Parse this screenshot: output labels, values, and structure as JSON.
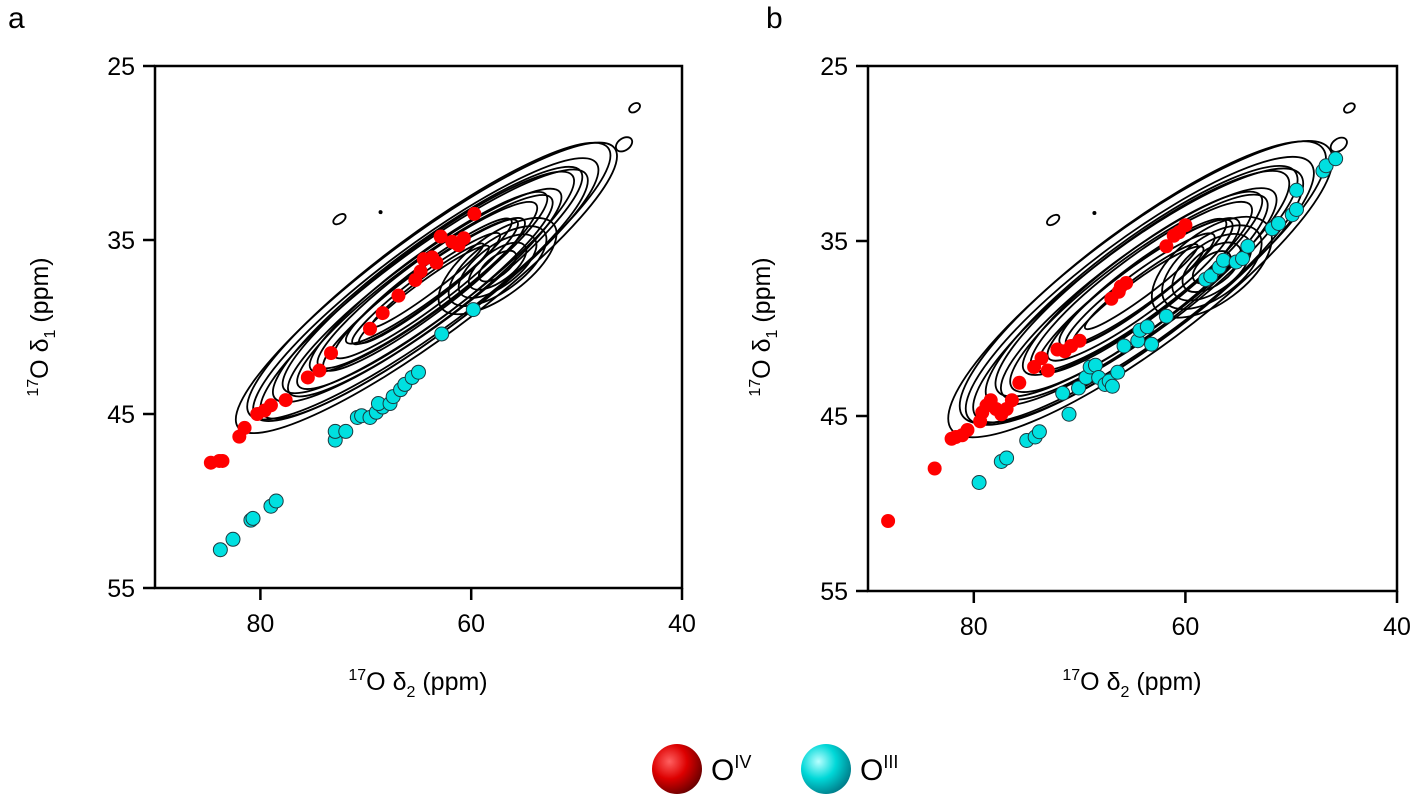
{
  "figure": {
    "legend": [
      {
        "base": "O",
        "sup": "IV",
        "color": "#ff0000"
      },
      {
        "base": "O",
        "sup": "III",
        "color": "#00e0e0"
      }
    ],
    "contour_color": "#000000"
  },
  "chart_data": [
    {
      "type": "scatter",
      "panel_label": "a",
      "x_label": {
        "sup": "17",
        "text": "O δ",
        "sub": "2",
        "unit": " (ppm)"
      },
      "y_label": {
        "sup": "17",
        "text": "O δ",
        "sub": "1",
        "unit": " (ppm)"
      },
      "xlim": [
        90,
        40
      ],
      "ylim": [
        25,
        55
      ],
      "x_ticks": [
        80,
        60,
        40
      ],
      "y_ticks": [
        25,
        35,
        45,
        55
      ],
      "x_tick_labels": [
        "80",
        "60",
        "40"
      ],
      "y_tick_labels": [
        "25",
        "35",
        "45",
        "55"
      ],
      "grid": false,
      "series": [
        {
          "name": "Oᴵⱽ",
          "color": "#ff0000",
          "points": [
            [
              84.7,
              47.8
            ],
            [
              83.9,
              47.7
            ],
            [
              83.6,
              47.7
            ],
            [
              82.0,
              46.3
            ],
            [
              81.5,
              45.8
            ],
            [
              80.3,
              45.0
            ],
            [
              79.6,
              44.8
            ],
            [
              79.0,
              44.5
            ],
            [
              77.6,
              44.2
            ],
            [
              75.5,
              42.9
            ],
            [
              74.4,
              42.5
            ],
            [
              73.3,
              41.5
            ],
            [
              69.6,
              40.1
            ],
            [
              68.4,
              39.2
            ],
            [
              66.9,
              38.2
            ],
            [
              65.3,
              37.3
            ],
            [
              64.8,
              36.8
            ],
            [
              64.5,
              36.1
            ],
            [
              63.7,
              36.0
            ],
            [
              63.3,
              36.3
            ],
            [
              62.9,
              34.8
            ],
            [
              61.8,
              35.1
            ],
            [
              61.2,
              35.3
            ],
            [
              60.7,
              34.9
            ],
            [
              59.7,
              33.5
            ]
          ]
        },
        {
          "name": "Oᴵᴵᴵ",
          "color": "#00e0e0",
          "points": [
            [
              83.8,
              52.8
            ],
            [
              82.6,
              52.2
            ],
            [
              80.9,
              51.1
            ],
            [
              80.7,
              51.0
            ],
            [
              79.0,
              50.3
            ],
            [
              78.5,
              50.0
            ],
            [
              72.9,
              46.5
            ],
            [
              72.9,
              46.0
            ],
            [
              71.9,
              46.0
            ],
            [
              70.8,
              45.2
            ],
            [
              70.4,
              45.1
            ],
            [
              69.6,
              45.2
            ],
            [
              69.0,
              44.9
            ],
            [
              68.4,
              44.6
            ],
            [
              68.8,
              44.4
            ],
            [
              67.7,
              44.4
            ],
            [
              67.4,
              44.0
            ],
            [
              66.7,
              43.6
            ],
            [
              66.3,
              43.3
            ],
            [
              65.6,
              42.9
            ],
            [
              65.0,
              42.6
            ],
            [
              62.8,
              40.4
            ],
            [
              59.8,
              39.0
            ]
          ]
        }
      ]
    },
    {
      "type": "scatter",
      "panel_label": "b",
      "x_label": {
        "sup": "17",
        "text": "O δ",
        "sub": "2",
        "unit": " (ppm)"
      },
      "y_label": {
        "sup": "17",
        "text": "O δ",
        "sub": "1",
        "unit": " (ppm)"
      },
      "xlim": [
        90,
        40
      ],
      "ylim": [
        25,
        55
      ],
      "x_ticks": [
        80,
        60,
        40
      ],
      "y_ticks": [
        25,
        35,
        45,
        55
      ],
      "x_tick_labels": [
        "80",
        "60",
        "40"
      ],
      "y_tick_labels": [
        "25",
        "35",
        "45",
        "55"
      ],
      "grid": false,
      "series": [
        {
          "name": "Oᴵⱽ",
          "color": "#ff0000",
          "points": [
            [
              88.1,
              51.0
            ],
            [
              83.7,
              48.0
            ],
            [
              82.1,
              46.3
            ],
            [
              81.7,
              46.2
            ],
            [
              81.1,
              46.1
            ],
            [
              80.6,
              45.8
            ],
            [
              79.4,
              45.3
            ],
            [
              79.2,
              44.8
            ],
            [
              78.8,
              44.4
            ],
            [
              78.4,
              44.1
            ],
            [
              77.9,
              44.6
            ],
            [
              77.4,
              44.9
            ],
            [
              76.9,
              44.6
            ],
            [
              76.4,
              44.1
            ],
            [
              75.7,
              43.1
            ],
            [
              74.3,
              42.2
            ],
            [
              73.6,
              41.7
            ],
            [
              73.0,
              42.4
            ],
            [
              72.1,
              41.2
            ],
            [
              71.4,
              41.3
            ],
            [
              70.8,
              41.0
            ],
            [
              70.0,
              40.7
            ],
            [
              67.0,
              38.3
            ],
            [
              66.3,
              37.9
            ],
            [
              66.1,
              37.6
            ],
            [
              65.6,
              37.4
            ],
            [
              61.8,
              35.3
            ],
            [
              61.1,
              34.7
            ],
            [
              60.6,
              34.5
            ],
            [
              60.0,
              34.1
            ]
          ]
        },
        {
          "name": "Oᴵᴵᴵ",
          "color": "#00e0e0",
          "points": [
            [
              79.5,
              48.8
            ],
            [
              77.4,
              47.6
            ],
            [
              76.9,
              47.4
            ],
            [
              75.0,
              46.4
            ],
            [
              74.2,
              46.2
            ],
            [
              73.8,
              45.9
            ],
            [
              71.0,
              44.9
            ],
            [
              71.6,
              43.7
            ],
            [
              70.1,
              43.4
            ],
            [
              69.4,
              42.8
            ],
            [
              69.0,
              42.2
            ],
            [
              68.5,
              42.1
            ],
            [
              68.2,
              42.8
            ],
            [
              67.6,
              43.2
            ],
            [
              67.2,
              43.0
            ],
            [
              66.9,
              43.3
            ],
            [
              66.4,
              42.5
            ],
            [
              65.8,
              41.0
            ],
            [
              64.5,
              40.7
            ],
            [
              64.3,
              40.1
            ],
            [
              63.6,
              39.9
            ],
            [
              63.2,
              40.9
            ],
            [
              61.8,
              39.3
            ],
            [
              58.1,
              37.2
            ],
            [
              57.6,
              37.0
            ],
            [
              56.8,
              36.5
            ],
            [
              56.4,
              36.1
            ],
            [
              55.2,
              36.2
            ],
            [
              54.6,
              36.0
            ],
            [
              54.1,
              35.3
            ],
            [
              51.8,
              34.3
            ],
            [
              51.2,
              34.0
            ],
            [
              49.9,
              33.5
            ],
            [
              49.5,
              33.2
            ],
            [
              49.5,
              32.1
            ],
            [
              47.0,
              31.0
            ],
            [
              46.7,
              30.7
            ],
            [
              45.8,
              30.3
            ]
          ]
        }
      ]
    }
  ]
}
